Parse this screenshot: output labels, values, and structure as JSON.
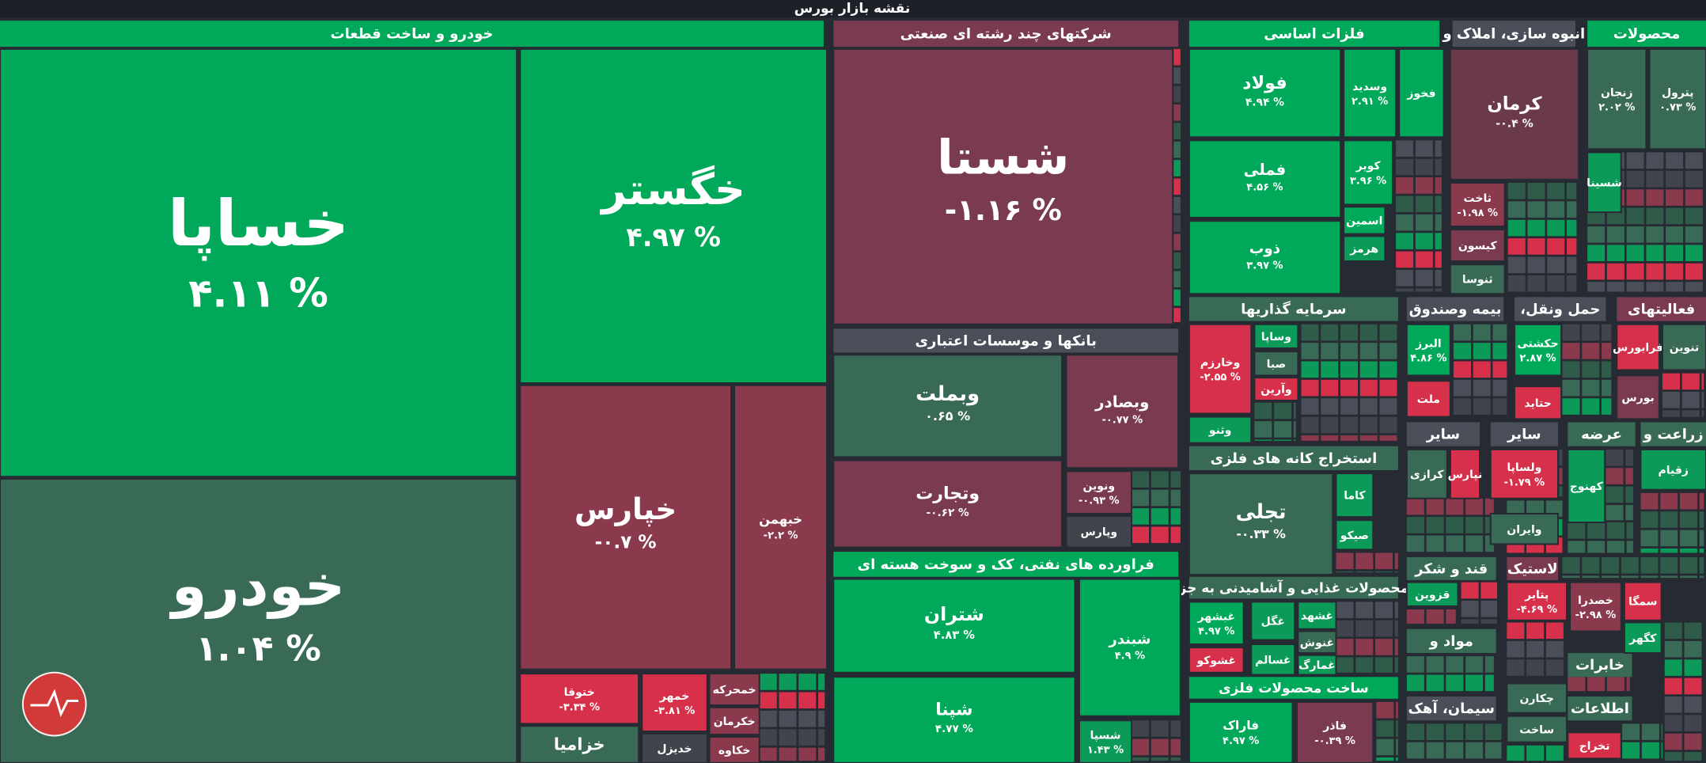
{
  "title": "نقشه بازار بورس",
  "headers": [
    {
      "label": "خودرو و ساخت قطعات",
      "color": "#00a85a"
    },
    {
      "label": "شرکتهای چند رشته ای صنعتی",
      "color": "#7a3a50"
    },
    {
      "label": "بانکها و موسسات اعتباری",
      "color": "#4a4e58"
    },
    {
      "label": "فراورده های نفتی، کک و سوخت هسته ای",
      "color": "#00a85a"
    },
    {
      "label": "فلزات اساسی",
      "color": "#00a85a"
    },
    {
      "label": "انبوه سازی، املاک و",
      "color": "#4a4e58"
    },
    {
      "label": "محصولات",
      "color": "#00a85a"
    },
    {
      "label": "سرمایه گذاریها",
      "color": "#386a55"
    },
    {
      "label": "بیمه وصندوق",
      "color": "#4a4e58"
    },
    {
      "label": "حمل ونقل،",
      "color": "#4a4e58"
    },
    {
      "label": "فعالیتهای",
      "color": "#7a3a50"
    },
    {
      "label": "استخراج کانه های فلزی",
      "color": "#386a55"
    },
    {
      "label": "سایر",
      "color": "#4a4e58"
    },
    {
      "label": "سایر",
      "color": "#4a4e58"
    },
    {
      "label": "عرضه",
      "color": "#386a55"
    },
    {
      "label": "زراعت و",
      "color": "#386a55"
    },
    {
      "label": "محصولات غذایی و آشامیدنی به جز",
      "color": "#386a55"
    },
    {
      "label": "ساخت محصولات فلزی",
      "color": "#00a85a"
    },
    {
      "label": "قند و شکر",
      "color": "#386a55"
    },
    {
      "label": "مواد و",
      "color": "#386a55"
    },
    {
      "label": "سیمان، آهک",
      "color": "#4a4e58"
    },
    {
      "label": "لاستیک",
      "color": "#7a3a50"
    },
    {
      "label": "خابرات",
      "color": "#386a55"
    },
    {
      "label": "اطلاعات",
      "color": "#386a55"
    }
  ],
  "tiles": [
    {
      "name": "خساپا",
      "change": "۴.۱۱ %",
      "color": "#00a85a"
    },
    {
      "name": "خودرو",
      "change": "۱.۰۴ %",
      "color": "#386a55"
    },
    {
      "name": "خگستر",
      "change": "۴.۹۷ %",
      "color": "#00a85a"
    },
    {
      "name": "خپارس",
      "change": "-۰.۷ %",
      "color": "#8a3a4c"
    },
    {
      "name": "خبهمن",
      "change": "-۲.۲ %",
      "color": "#8a3a4c"
    },
    {
      "name": "ختوقا",
      "change": "-۳.۳۴ %",
      "color": "#d6304a"
    },
    {
      "name": "خمهر",
      "change": "-۳.۸۱ %",
      "color": "#d6304a"
    },
    {
      "name": "خمحرکه",
      "color": "#8a3a4c"
    },
    {
      "name": "خکرمان",
      "color": "#8a3a4c"
    },
    {
      "name": "خکاوه",
      "color": "#8a3a4c"
    },
    {
      "name": "خزامیا",
      "color": "#386a55"
    },
    {
      "name": "خدیزل",
      "color": "#41444c"
    },
    {
      "name": "شستا",
      "change": "-۱.۱۶ %",
      "color": "#7a3a50"
    },
    {
      "name": "وبملت",
      "change": "۰.۶۵ %",
      "color": "#386a55"
    },
    {
      "name": "وبصادر",
      "change": "-۰.۷۷ %",
      "color": "#7a3a50"
    },
    {
      "name": "وتجارت",
      "change": "-۰.۶۲ %",
      "color": "#7a3a50"
    },
    {
      "name": "ونوین",
      "change": "-۰.۹۳ %",
      "color": "#7a3a50"
    },
    {
      "name": "وپارس",
      "color": "#41444c"
    },
    {
      "name": "شتران",
      "change": "۴.۸۳ %",
      "color": "#00a85a"
    },
    {
      "name": "شپنا",
      "change": "۴.۷۷ %",
      "color": "#00a85a"
    },
    {
      "name": "شبندر",
      "change": "۴.۹ %",
      "color": "#00a85a"
    },
    {
      "name": "شسپا",
      "change": "۱.۴۳ %",
      "color": "#0c9a58"
    },
    {
      "name": "فولاد",
      "change": "۴.۹۴ %",
      "color": "#00a85a"
    },
    {
      "name": "فملی",
      "change": "۴.۵۶ %",
      "color": "#00a85a"
    },
    {
      "name": "ذوب",
      "change": "۳.۹۷ %",
      "color": "#00a85a"
    },
    {
      "name": "وسدید",
      "change": "۲.۹۱ %",
      "color": "#00a85a"
    },
    {
      "name": "فخوز",
      "color": "#00a85a"
    },
    {
      "name": "کویر",
      "change": "۳.۹۶ %",
      "color": "#00a85a"
    },
    {
      "name": "اسمین",
      "color": "#00a85a"
    },
    {
      "name": "هرمز",
      "color": "#0c9a58"
    },
    {
      "name": "کرمان",
      "change": "-۰.۴ %",
      "color": "#6a3a4a"
    },
    {
      "name": "ثاخت",
      "change": "-۱.۹۸ %",
      "color": "#8a3a4c"
    },
    {
      "name": "کیسون",
      "color": "#7a3a50"
    },
    {
      "name": "ثنوسا",
      "color": "#386a55"
    },
    {
      "name": "زنجان",
      "change": "۲.۰۲ %",
      "color": "#386a55"
    },
    {
      "name": "پترول",
      "change": "۰.۷۳ %",
      "color": "#386a55"
    },
    {
      "name": "شسینا",
      "color": "#0c9a58"
    },
    {
      "name": "وخارزم",
      "change": "-۲.۵۵ %",
      "color": "#d6304a"
    },
    {
      "name": "وساپا",
      "color": "#0c9a58"
    },
    {
      "name": "صبا",
      "color": "#386a55"
    },
    {
      "name": "وآرین",
      "color": "#d6304a"
    },
    {
      "name": "وثنو",
      "color": "#0c9a58"
    },
    {
      "name": "البرز",
      "change": "۴.۸۶ %",
      "color": "#00a85a"
    },
    {
      "name": "ملت",
      "color": "#d6304a"
    },
    {
      "name": "حکشتی",
      "change": "۲.۸۷ %",
      "color": "#00a85a"
    },
    {
      "name": "حتاید",
      "color": "#d6304a"
    },
    {
      "name": "فرابورس",
      "color": "#d6304a"
    },
    {
      "name": "تنوین",
      "color": "#386a55"
    },
    {
      "name": "بورس",
      "color": "#7a3a50"
    },
    {
      "name": "تجلی",
      "change": "-۰.۳۳ %",
      "color": "#386a55"
    },
    {
      "name": "کاما",
      "color": "#0c9a58"
    },
    {
      "name": "صیکو",
      "color": "#0c9a58"
    },
    {
      "name": "کرازی",
      "color": "#386a55"
    },
    {
      "name": "نپارس",
      "color": "#d6304a"
    },
    {
      "name": "ولساپا",
      "change": "-۱.۷۹ %",
      "color": "#d6304a"
    },
    {
      "name": "وایران",
      "color": "#386a55"
    },
    {
      "name": "کهنوج",
      "color": "#0c9a58"
    },
    {
      "name": "زقیام",
      "color": "#0c9a58"
    },
    {
      "name": "غبشهر",
      "change": "۴.۹۷ %",
      "color": "#00a85a"
    },
    {
      "name": "غشوکو",
      "color": "#d6304a"
    },
    {
      "name": "غگل",
      "color": "#0c9a58"
    },
    {
      "name": "غشهد",
      "color": "#0c9a58"
    },
    {
      "name": "غنوش",
      "color": "#386a55"
    },
    {
      "name": "غمارگ",
      "color": "#0c9a58"
    },
    {
      "name": "غسالم",
      "color": "#0c9a58"
    },
    {
      "name": "فاراک",
      "change": "۴.۹۷ %",
      "color": "#00a85a"
    },
    {
      "name": "فاذر",
      "change": "-۰.۳۹ %",
      "color": "#7a3a50"
    },
    {
      "name": "قزوین",
      "color": "#0c9a58"
    },
    {
      "name": "پتایر",
      "change": "-۴.۶۹ %",
      "color": "#d6304a"
    },
    {
      "name": "خصدرا",
      "change": "-۲.۹۸ %",
      "color": "#8a3a4c"
    },
    {
      "name": "سمگا",
      "color": "#d6304a"
    },
    {
      "name": "کگهر",
      "color": "#0c9a58"
    },
    {
      "name": "چکارن",
      "color": "#386a55"
    },
    {
      "name": "ساخت",
      "color": "#386a55"
    },
    {
      "name": "تخراج",
      "color": "#d6304a"
    }
  ]
}
